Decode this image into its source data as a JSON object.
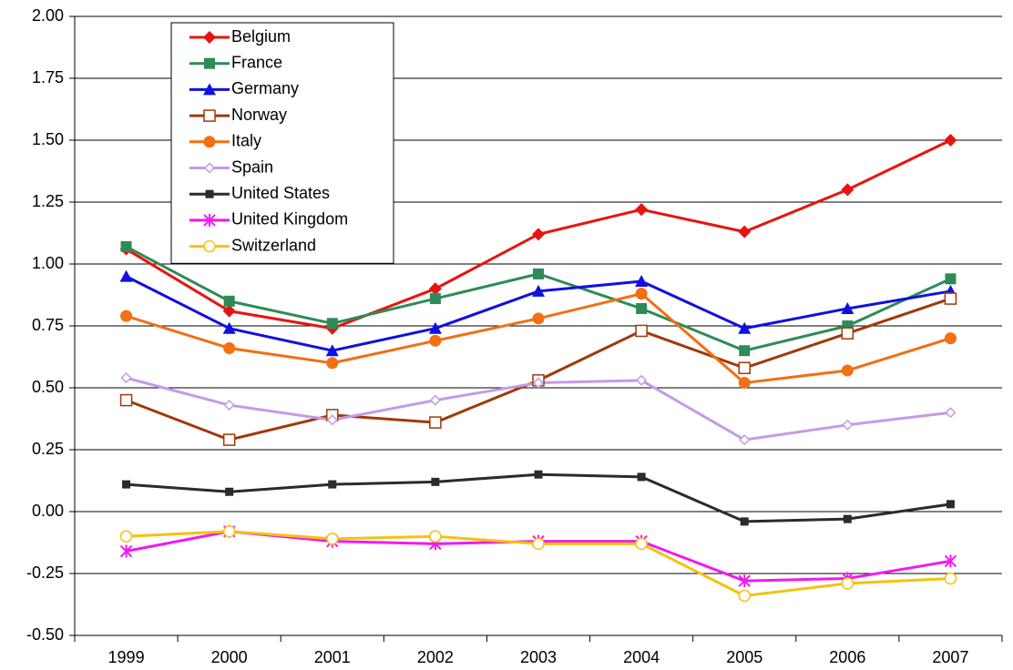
{
  "chart_data": {
    "type": "line",
    "categories": [
      "1999",
      "2000",
      "2001",
      "2002",
      "2003",
      "2004",
      "2005",
      "2006",
      "2007"
    ],
    "ylim": [
      -0.5,
      2.0
    ],
    "yticks": [
      {
        "value": -0.5,
        "label": "-0.50"
      },
      {
        "value": -0.25,
        "label": "-0.25"
      },
      {
        "value": 0,
        "label": "0.00"
      },
      {
        "value": 0.25,
        "label": "0.25"
      },
      {
        "value": 0.5,
        "label": "0.50"
      },
      {
        "value": 0.75,
        "label": "0.75"
      },
      {
        "value": 1.0,
        "label": "1.00"
      },
      {
        "value": 1.25,
        "label": "1.25"
      },
      {
        "value": 1.5,
        "label": "1.50"
      },
      {
        "value": 1.75,
        "label": "1.75"
      },
      {
        "value": 2.0,
        "label": "2.00"
      }
    ],
    "grid": true,
    "legend": "upper-left",
    "series": [
      {
        "name": "Belgium",
        "color": "#e8140f",
        "marker": "diamond",
        "values": [
          1.06,
          0.81,
          0.74,
          0.9,
          1.12,
          1.22,
          1.13,
          1.3,
          1.5
        ]
      },
      {
        "name": "France",
        "color": "#2e8b57",
        "marker": "square",
        "values": [
          1.07,
          0.85,
          0.76,
          0.86,
          0.96,
          0.82,
          0.65,
          0.75,
          0.94
        ]
      },
      {
        "name": "Germany",
        "color": "#1010e0",
        "marker": "triangle",
        "values": [
          0.95,
          0.74,
          0.65,
          0.74,
          0.89,
          0.93,
          0.74,
          0.82,
          0.89
        ]
      },
      {
        "name": "Norway",
        "color": "#a0390a",
        "marker": "open-square",
        "values": [
          0.45,
          0.29,
          0.39,
          0.36,
          0.53,
          0.73,
          0.58,
          0.72,
          0.86
        ]
      },
      {
        "name": "Italy",
        "color": "#f26f12",
        "marker": "circle",
        "values": [
          0.79,
          0.66,
          0.6,
          0.69,
          0.78,
          0.88,
          0.52,
          0.57,
          0.7
        ]
      },
      {
        "name": "Spain",
        "color": "#c49ae8",
        "marker": "open-diamond",
        "values": [
          0.54,
          0.43,
          0.37,
          0.45,
          0.52,
          0.53,
          0.29,
          0.35,
          0.4
        ]
      },
      {
        "name": "United States",
        "color": "#2b2b2b",
        "marker": "small-square",
        "values": [
          0.11,
          0.08,
          0.11,
          0.12,
          0.15,
          0.14,
          -0.04,
          -0.03,
          0.03
        ]
      },
      {
        "name": "United Kingdom",
        "color": "#f019f0",
        "marker": "star",
        "values": [
          -0.16,
          -0.08,
          -0.12,
          -0.13,
          -0.12,
          -0.12,
          -0.28,
          -0.27,
          -0.2
        ]
      },
      {
        "name": "Switzerland",
        "color": "#f5c20f",
        "marker": "open-circle",
        "values": [
          -0.1,
          -0.08,
          -0.11,
          -0.1,
          -0.13,
          -0.13,
          -0.34,
          -0.29,
          -0.27
        ]
      }
    ]
  }
}
